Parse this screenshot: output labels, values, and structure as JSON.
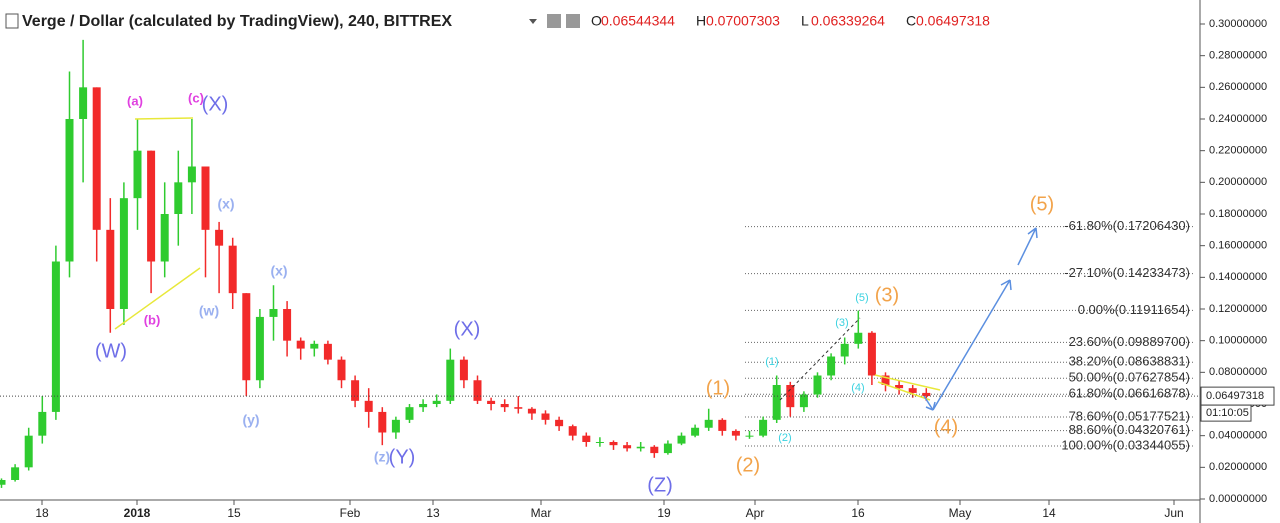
{
  "chart_data": {
    "type": "candlestick",
    "title": "Verge / Dollar (calculated by TradingView), 240, BITTREX",
    "ohlc_header": [
      {
        "label": "O",
        "value": "0.06544344"
      },
      {
        "label": "H",
        "value": "0.07007303"
      },
      {
        "label": "L",
        "value": "0.06339264"
      },
      {
        "label": "C",
        "value": "0.06497318"
      }
    ],
    "open": [
      0.009,
      0.012,
      0.02,
      0.04,
      0.055,
      0.15,
      0.24,
      0.26,
      0.17,
      0.12,
      0.19,
      0.22,
      0.15,
      0.18,
      0.2,
      0.21,
      0.17,
      0.16,
      0.13,
      0.075,
      0.115,
      0.12,
      0.1,
      0.095,
      0.098,
      0.088,
      0.075,
      0.062,
      0.055,
      0.042,
      0.05,
      0.058,
      0.06,
      0.062,
      0.088,
      0.075,
      0.062,
      0.06,
      0.058,
      0.057,
      0.054,
      0.05,
      0.046,
      0.04,
      0.036,
      0.036,
      0.034,
      0.032,
      0.033,
      0.029,
      0.035,
      0.04,
      0.045,
      0.05,
      0.043,
      0.04,
      0.04,
      0.05,
      0.072,
      0.058,
      0.066,
      0.078,
      0.09,
      0.098,
      0.105,
      0.078,
      0.072,
      0.07,
      0.067
    ],
    "high": [
      0.013,
      0.022,
      0.045,
      0.065,
      0.16,
      0.27,
      0.29,
      0.26,
      0.19,
      0.2,
      0.24,
      0.22,
      0.2,
      0.22,
      0.24,
      0.21,
      0.175,
      0.165,
      0.13,
      0.12,
      0.135,
      0.125,
      0.102,
      0.1,
      0.1,
      0.09,
      0.078,
      0.07,
      0.058,
      0.052,
      0.06,
      0.063,
      0.066,
      0.095,
      0.09,
      0.078,
      0.064,
      0.063,
      0.065,
      0.058,
      0.056,
      0.052,
      0.047,
      0.042,
      0.039,
      0.037,
      0.036,
      0.036,
      0.034,
      0.037,
      0.042,
      0.047,
      0.057,
      0.051,
      0.044,
      0.043,
      0.052,
      0.078,
      0.074,
      0.068,
      0.08,
      0.092,
      0.102,
      0.119,
      0.106,
      0.08,
      0.075,
      0.072,
      0.07
    ],
    "low": [
      0.007,
      0.011,
      0.018,
      0.035,
      0.05,
      0.14,
      0.2,
      0.15,
      0.105,
      0.11,
      0.17,
      0.13,
      0.14,
      0.16,
      0.18,
      0.14,
      0.13,
      0.12,
      0.065,
      0.07,
      0.1,
      0.09,
      0.088,
      0.09,
      0.085,
      0.07,
      0.058,
      0.045,
      0.034,
      0.038,
      0.048,
      0.055,
      0.058,
      0.06,
      0.07,
      0.06,
      0.056,
      0.055,
      0.054,
      0.05,
      0.047,
      0.043,
      0.037,
      0.033,
      0.033,
      0.031,
      0.03,
      0.03,
      0.026,
      0.028,
      0.034,
      0.039,
      0.043,
      0.04,
      0.037,
      0.038,
      0.039,
      0.048,
      0.052,
      0.055,
      0.064,
      0.075,
      0.085,
      0.095,
      0.072,
      0.068,
      0.066,
      0.064,
      0.062
    ],
    "close": [
      0.012,
      0.02,
      0.04,
      0.055,
      0.15,
      0.24,
      0.26,
      0.17,
      0.12,
      0.19,
      0.22,
      0.15,
      0.18,
      0.2,
      0.21,
      0.17,
      0.16,
      0.13,
      0.075,
      0.115,
      0.12,
      0.1,
      0.095,
      0.098,
      0.088,
      0.075,
      0.062,
      0.055,
      0.042,
      0.05,
      0.058,
      0.06,
      0.062,
      0.088,
      0.075,
      0.062,
      0.06,
      0.058,
      0.057,
      0.054,
      0.05,
      0.046,
      0.04,
      0.036,
      0.036,
      0.034,
      0.032,
      0.033,
      0.029,
      0.035,
      0.04,
      0.045,
      0.05,
      0.043,
      0.04,
      0.04,
      0.05,
      0.072,
      0.058,
      0.066,
      0.078,
      0.09,
      0.098,
      0.105,
      0.078,
      0.072,
      0.07,
      0.067,
      0.065
    ],
    "up_color": "#2fcb2f",
    "down_color": "#f22a2a",
    "ylim": [
      0,
      0.3
    ],
    "yticks": [
      {
        "value": 0,
        "label": "0.00000000"
      },
      {
        "value": 0.02,
        "label": "0.02000000"
      },
      {
        "value": 0.04,
        "label": "0.04000000"
      },
      {
        "value": 0.06,
        "label": "0.06000000"
      },
      {
        "value": 0.08,
        "label": "0.08000000"
      },
      {
        "value": 0.1,
        "label": "0.10000000"
      },
      {
        "value": 0.12,
        "label": "0.12000000"
      },
      {
        "value": 0.14,
        "label": "0.14000000"
      },
      {
        "value": 0.16,
        "label": "0.16000000"
      },
      {
        "value": 0.18,
        "label": "0.18000000"
      },
      {
        "value": 0.2,
        "label": "0.20000000"
      },
      {
        "value": 0.22,
        "label": "0.22000000"
      },
      {
        "value": 0.24,
        "label": "0.24000000"
      },
      {
        "value": 0.26,
        "label": "0.26000000"
      },
      {
        "value": 0.28,
        "label": "0.28000000"
      },
      {
        "value": 0.3,
        "label": "0.30000000"
      }
    ],
    "xlabels": [
      "18",
      "2018",
      "15",
      "Feb",
      "13",
      "Mar",
      "19",
      "Apr",
      "16",
      "May",
      "14",
      "Jun"
    ],
    "last_price": {
      "value": 0.06497318,
      "label": "0.06497318",
      "countdown": "01:10:05"
    },
    "fib_levels": [
      {
        "label": "-61.80%(0.17206430)",
        "price": 0.1720643
      },
      {
        "label": "-27.10%(0.14233473)",
        "price": 0.14233473
      },
      {
        "label": "0.00%(0.11911654)",
        "price": 0.11911654
      },
      {
        "label": "23.60%(0.09889700)",
        "price": 0.098897
      },
      {
        "label": "38.20%(0.08638831)",
        "price": 0.08638831
      },
      {
        "label": "50.00%(0.07627854)",
        "price": 0.07627854
      },
      {
        "label": "61.80%(0.06616878)",
        "price": 0.06616878
      },
      {
        "label": "78.60%(0.05177521)",
        "price": 0.05177521
      },
      {
        "label": "88.60%(0.04320761)",
        "price": 0.04320761
      },
      {
        "label": "100.00%(0.03344055)",
        "price": 0.03344055
      }
    ],
    "wave_labels": [
      "(a)",
      "(c)",
      "(X)",
      "(b)",
      "(W)",
      "(x)",
      "(w)",
      "(x)",
      "(y)",
      "(X)",
      "(z)",
      "(Y)",
      "(Z)",
      "(1)",
      "(2)",
      "(3)",
      "(4)",
      "(5)",
      "(1)",
      "(2)",
      "(3)",
      "(4)",
      "(5)"
    ]
  }
}
